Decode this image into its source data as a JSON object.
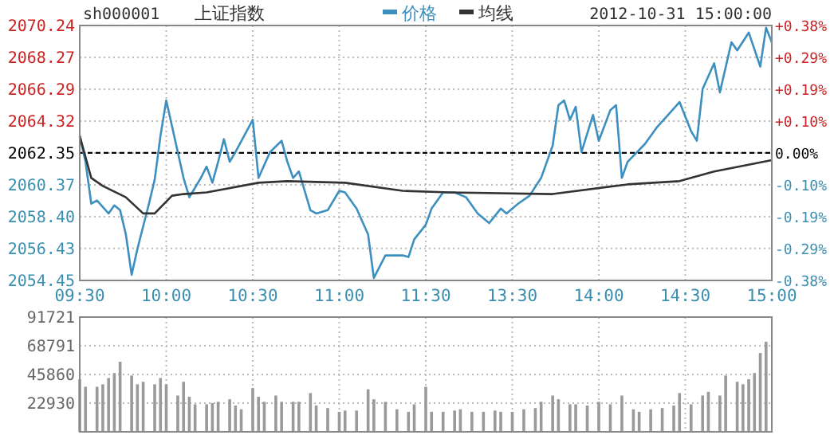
{
  "chart_data": [
    {
      "type": "line",
      "title": "上证指数",
      "subtitle": "sh000001",
      "annotations": [
        "2012-10-31 15:00:00"
      ],
      "categories": [
        "09:30",
        null,
        null,
        null,
        null,
        null,
        null,
        null,
        null,
        null,
        null,
        null,
        null,
        null,
        null,
        "10:00",
        null,
        null,
        null,
        null,
        null,
        null,
        null,
        null,
        null,
        null,
        null,
        null,
        null,
        null,
        "10:30",
        null,
        null,
        null,
        null,
        null,
        null,
        null,
        null,
        null,
        null,
        null,
        null,
        null,
        null,
        "11:00",
        null,
        null,
        null,
        null,
        null,
        null,
        null,
        null,
        null,
        null,
        null,
        null,
        null,
        null,
        "11:30",
        null,
        null,
        null,
        null,
        null,
        null,
        null,
        null,
        null,
        null,
        null,
        null,
        null,
        null,
        "13:30",
        null,
        null,
        null,
        null,
        null,
        null,
        null,
        null,
        null,
        null,
        null,
        null,
        null,
        null,
        "14:00",
        null,
        null,
        null,
        null,
        null,
        null,
        null,
        null,
        null,
        null,
        null,
        null,
        null,
        null,
        "14:30",
        null,
        null,
        null,
        null,
        null,
        null,
        null,
        null,
        null,
        null,
        null,
        null,
        null,
        null,
        "15:00"
      ],
      "ylim": [
        2054.45,
        2070.24
      ],
      "yticks": [
        2054.45,
        2056.43,
        {
          "value": 2058.4,
          "label": "2058.40"
        },
        2060.37,
        2062.35,
        2064.32,
        2066.29,
        2068.27,
        2070.24
      ],
      "y2lim": [
        -0.383,
        0.383
      ],
      "y2ticks": [
        {
          "value": -0.383,
          "label": "-0.38%"
        },
        {
          "value": -0.287,
          "label": "-0.29%"
        },
        {
          "value": -0.191,
          "label": "-0.19%"
        },
        {
          "value": -0.096,
          "label": "-0.10%"
        },
        {
          "value": 0,
          "label": "0.00%"
        },
        {
          "value": 0.096,
          "label": "+0.10%"
        },
        {
          "value": 0.191,
          "label": "+0.19%"
        },
        {
          "value": 0.287,
          "label": "+0.29%"
        },
        {
          "value": 0.383,
          "label": "+0.38%"
        }
      ],
      "ref_lines": [
        {
          "axis": "y",
          "value": 2062.35,
          "color": "#000000",
          "line_style": "dashed"
        }
      ],
      "grid": true,
      "legend": "top",
      "line_style": "solid",
      "marker": "none",
      "series": [
        {
          "name": "价格",
          "color": "#3c8fbf",
          "values": [
            2063.4,
            2061.8,
            2059.2,
            2059.4,
            null,
            2058.6,
            2059.1,
            2058.8,
            2057.3,
            2054.8,
            2056.4,
            null,
            2059.2,
            2060.7,
            2063.4,
            2065.6,
            2064.0,
            2062.4,
            2060.8,
            2059.6,
            2060.2,
            2060.8,
            2061.5,
            2060.5,
            2061.8,
            2063.2,
            2061.8,
            2062.4,
            null,
            null,
            2064.4,
            2060.8,
            null,
            2062.4,
            null,
            2063.1,
            2061.8,
            2060.8,
            2061.2,
            null,
            2058.8,
            2058.6,
            null,
            2058.8,
            null,
            2060.0,
            2059.9,
            null,
            2058.9,
            null,
            2057.3,
            2054.6,
            null,
            2056.0,
            null,
            null,
            2056.0,
            2055.9,
            2057.0,
            null,
            2057.9,
            2058.9,
            null,
            2059.9,
            null,
            2059.9,
            null,
            2059.6,
            null,
            2058.6,
            2058.3,
            2058.0,
            null,
            2058.9,
            2058.6,
            null,
            2059.2,
            null,
            2059.7,
            null,
            2060.8,
            null,
            2062.8,
            2065.3,
            2065.6,
            2064.4,
            2065.2,
            2062.4,
            null,
            2064.7,
            2063.1,
            null,
            2065.0,
            2065.3,
            2060.8,
            2061.8,
            null,
            null,
            2062.9,
            null,
            2063.9,
            null,
            2064.7,
            null,
            2065.5,
            null,
            2063.7,
            2063.1,
            2066.3,
            null,
            2067.9,
            2066.1,
            null,
            2069.2,
            2068.7,
            null,
            2069.8,
            null,
            2067.7,
            2070.1,
            2069.2
          ]
        },
        {
          "name": "均线",
          "color": "#333333",
          "values": [
            2063.4,
            null,
            2060.8,
            null,
            2060.3,
            null,
            null,
            null,
            2059.6,
            null,
            null,
            2058.6,
            null,
            2058.6,
            null,
            null,
            2059.7,
            null,
            2059.8,
            null,
            null,
            null,
            2059.9,
            null,
            null,
            null,
            null,
            null,
            null,
            null,
            null,
            2060.5,
            null,
            null,
            null,
            null,
            2060.6,
            null,
            null,
            null,
            null,
            null,
            null,
            null,
            null,
            null,
            2060.5,
            null,
            null,
            null,
            null,
            null,
            null,
            null,
            null,
            null,
            2060.0,
            null,
            null,
            null,
            null,
            null,
            null,
            null,
            2059.9,
            null,
            null,
            null,
            null,
            null,
            null,
            null,
            null,
            null,
            null,
            null,
            null,
            null,
            null,
            null,
            null,
            null,
            2059.8,
            null,
            null,
            null,
            null,
            null,
            null,
            null,
            null,
            null,
            null,
            null,
            null,
            2060.4,
            null,
            null,
            null,
            null,
            null,
            null,
            null,
            null,
            2060.6,
            null,
            null,
            null,
            null,
            null,
            2061.2,
            null,
            null,
            null,
            null,
            null,
            null,
            null,
            null,
            null,
            2061.9
          ]
        }
      ]
    },
    {
      "type": "bar",
      "color": "#9a9a9a",
      "categories": [
        null,
        null,
        null,
        null,
        null,
        null,
        null,
        null,
        null,
        null,
        null,
        null,
        null,
        null,
        null,
        null,
        null,
        null,
        null,
        null,
        null,
        null,
        null,
        null,
        null,
        null,
        null,
        null,
        null,
        null,
        null,
        null,
        null,
        null,
        null,
        null,
        null,
        null,
        null,
        null,
        null,
        null,
        null,
        null,
        null,
        null,
        null,
        null,
        null,
        null,
        null,
        null,
        null,
        null,
        null,
        null,
        null,
        null,
        null,
        null,
        null,
        null,
        null,
        null,
        null,
        null,
        null,
        null,
        null,
        null,
        null,
        null,
        null,
        null,
        null,
        null,
        null,
        null,
        null,
        null,
        null,
        null,
        null,
        null,
        null,
        null,
        null,
        null,
        null,
        null,
        null,
        null,
        null,
        null,
        null,
        null,
        null,
        null,
        null,
        null,
        null,
        null,
        null,
        null,
        null,
        null,
        null,
        null,
        null,
        null,
        null,
        null,
        null,
        null,
        null,
        null,
        null,
        null,
        null,
        null,
        null
      ],
      "ylim": [
        0,
        91721
      ],
      "yticks": [
        22930,
        45860,
        68791,
        91721
      ],
      "grid": true,
      "tick_labels": "y",
      "values": [
        42000,
        36000,
        null,
        36000,
        38000,
        43000,
        47000,
        56000,
        null,
        45000,
        38000,
        40000,
        null,
        38000,
        43000,
        38000,
        null,
        29000,
        40000,
        28000,
        22000,
        null,
        22000,
        23000,
        24000,
        null,
        26000,
        21000,
        18000,
        null,
        35000,
        28000,
        24000,
        null,
        29000,
        24000,
        null,
        24000,
        24000,
        null,
        31000,
        21000,
        null,
        19000,
        null,
        16000,
        17000,
        null,
        17000,
        null,
        34000,
        26000,
        null,
        24000,
        null,
        18000,
        null,
        16000,
        22000,
        null,
        36000,
        16000,
        null,
        16000,
        null,
        17000,
        18000,
        null,
        16000,
        null,
        16000,
        null,
        17000,
        16000,
        null,
        16000,
        null,
        18000,
        null,
        19000,
        24000,
        null,
        29000,
        26000,
        null,
        22000,
        22000,
        null,
        21000,
        null,
        24000,
        null,
        22000,
        null,
        29000,
        null,
        18000,
        16000,
        null,
        18000,
        null,
        19000,
        null,
        21000,
        31000,
        null,
        22000,
        null,
        29000,
        32000,
        null,
        29000,
        45000,
        null,
        40000,
        38000,
        42000,
        47000,
        63000,
        72000,
        null
      ]
    }
  ]
}
